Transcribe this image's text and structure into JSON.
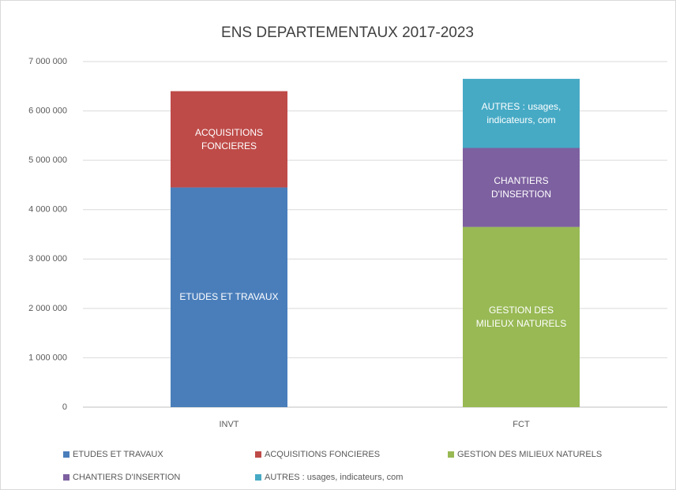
{
  "chart_data": {
    "type": "stacked_bar",
    "title": "ENS DEPARTEMENTAUX 2017-2023",
    "categories": [
      "INVT",
      "FCT"
    ],
    "series": [
      {
        "name": "ETUDES ET TRAVAUX",
        "color": "#4a7ebb",
        "values": [
          4450000,
          null
        ]
      },
      {
        "name": "ACQUISITIONS FONCIERES",
        "color": "#be4b48",
        "values": [
          1950000,
          null
        ]
      },
      {
        "name": "GESTION DES MILIEUX NATURELS",
        "color": "#98b954",
        "values": [
          null,
          3650000
        ]
      },
      {
        "name": "CHANTIERS D'INSERTION",
        "color": "#7d60a0",
        "values": [
          null,
          1600000
        ]
      },
      {
        "name": "AUTRES : usages, indicateurs, com",
        "color": "#46aac5",
        "values": [
          null,
          1400000
        ]
      }
    ],
    "ylim": [
      0,
      7000000
    ],
    "yticks": [
      0,
      {
        "value": 1000000,
        "label": "1 000 000"
      },
      {
        "value": 2000000,
        "label": "2 000 000"
      },
      {
        "value": 3000000,
        "label": "3 000 000"
      },
      {
        "value": 4000000,
        "label": "4 000 000"
      },
      {
        "value": 5000000,
        "label": "5 000 000"
      },
      {
        "value": 6000000,
        "label": "6 000 000"
      },
      {
        "value": 7000000,
        "label": "7 000 000"
      }
    ],
    "grid": true,
    "legend": "bottom"
  }
}
